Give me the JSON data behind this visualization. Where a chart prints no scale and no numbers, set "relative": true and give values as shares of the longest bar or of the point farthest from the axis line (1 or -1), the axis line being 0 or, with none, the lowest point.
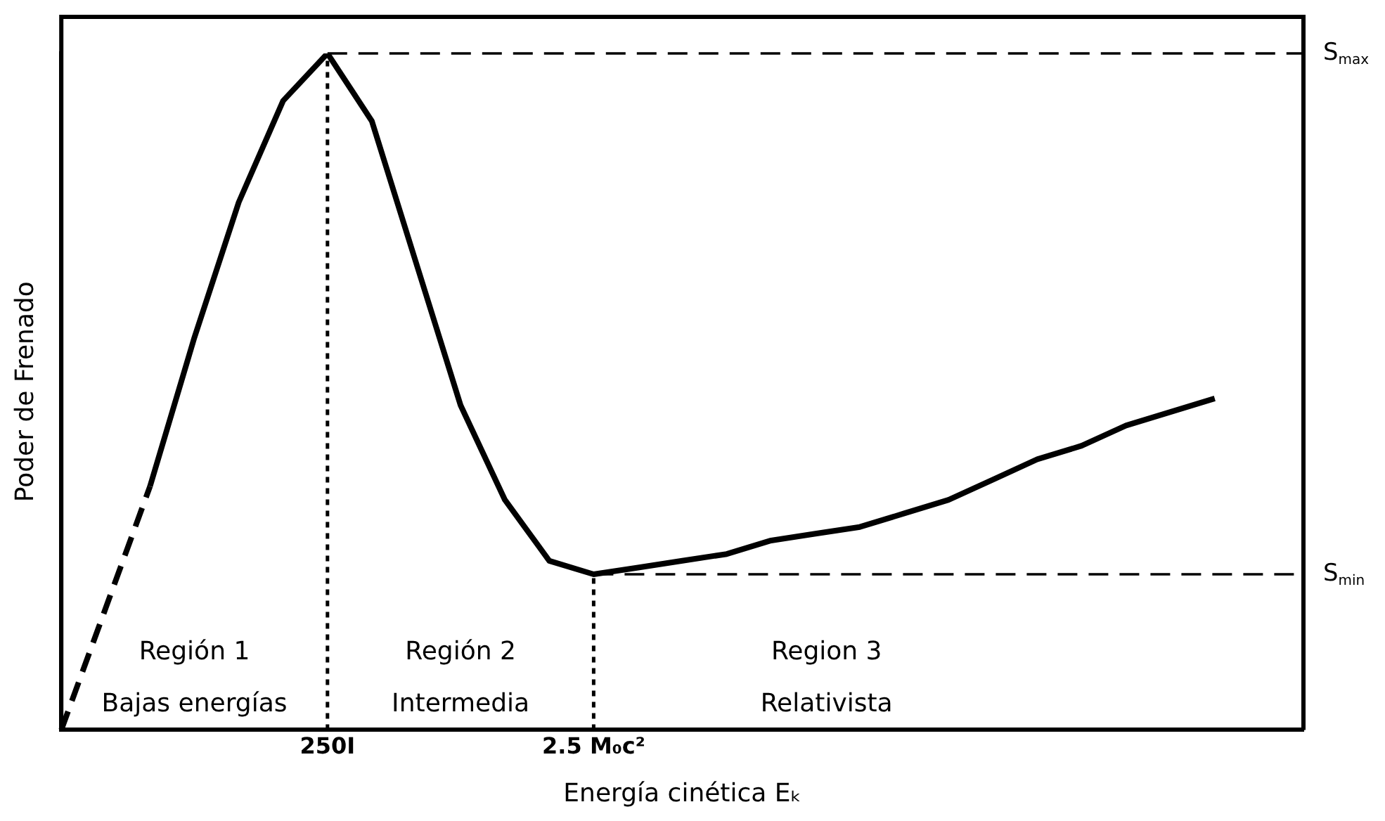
{
  "chart_data": {
    "type": "line",
    "relative": true,
    "xlabel": "Energía cinética Eₖ",
    "ylabel": "Poder de Frenado",
    "categories": [
      null,
      null,
      null,
      null,
      null,
      null,
      "250I",
      null,
      null,
      null,
      null,
      null,
      "2.5 M₀c²",
      null,
      null,
      null,
      null,
      null,
      null,
      null,
      null,
      null,
      null,
      null,
      null,
      null,
      null,
      null,
      null
    ],
    "tick_labels": "x",
    "grid": false,
    "legend": false,
    "marker": "none",
    "series": [
      {
        "color": "#000000",
        "line_style": "dashed",
        "values": [
          0,
          0.18,
          0.36,
          null,
          null,
          null,
          null,
          null,
          null,
          null,
          null,
          null,
          null,
          null,
          null,
          null,
          null,
          null,
          null,
          null,
          null,
          null,
          null,
          null,
          null,
          null,
          null,
          null,
          null
        ]
      },
      {
        "color": "#000000",
        "line_style": "solid",
        "values": [
          null,
          null,
          0.36,
          0.58,
          0.78,
          0.93,
          1,
          0.9,
          0.69,
          0.48,
          0.34,
          0.25,
          0.23,
          0.24,
          0.25,
          0.26,
          0.28,
          0.29,
          0.3,
          0.32,
          0.34,
          0.37,
          0.4,
          0.42,
          0.45,
          0.47,
          0.49,
          null,
          null
        ]
      }
    ],
    "ref_lines": [
      {
        "axis": "y",
        "value": 1,
        "label": "S$_{max}$",
        "line_style": "dashed"
      },
      {
        "axis": "y",
        "value": 0.23,
        "label": "S$_{min}$",
        "line_style": "dashed"
      },
      {
        "axis": "x",
        "value": "250I",
        "line_style": "dotted"
      },
      {
        "axis": "x",
        "value": "2.5 M₀c²",
        "line_style": "dotted"
      }
    ],
    "annotations": [
      "Región 1",
      "Bajas energías",
      "Región 2",
      "Intermedia",
      "Region 3",
      "Relativista"
    ]
  }
}
